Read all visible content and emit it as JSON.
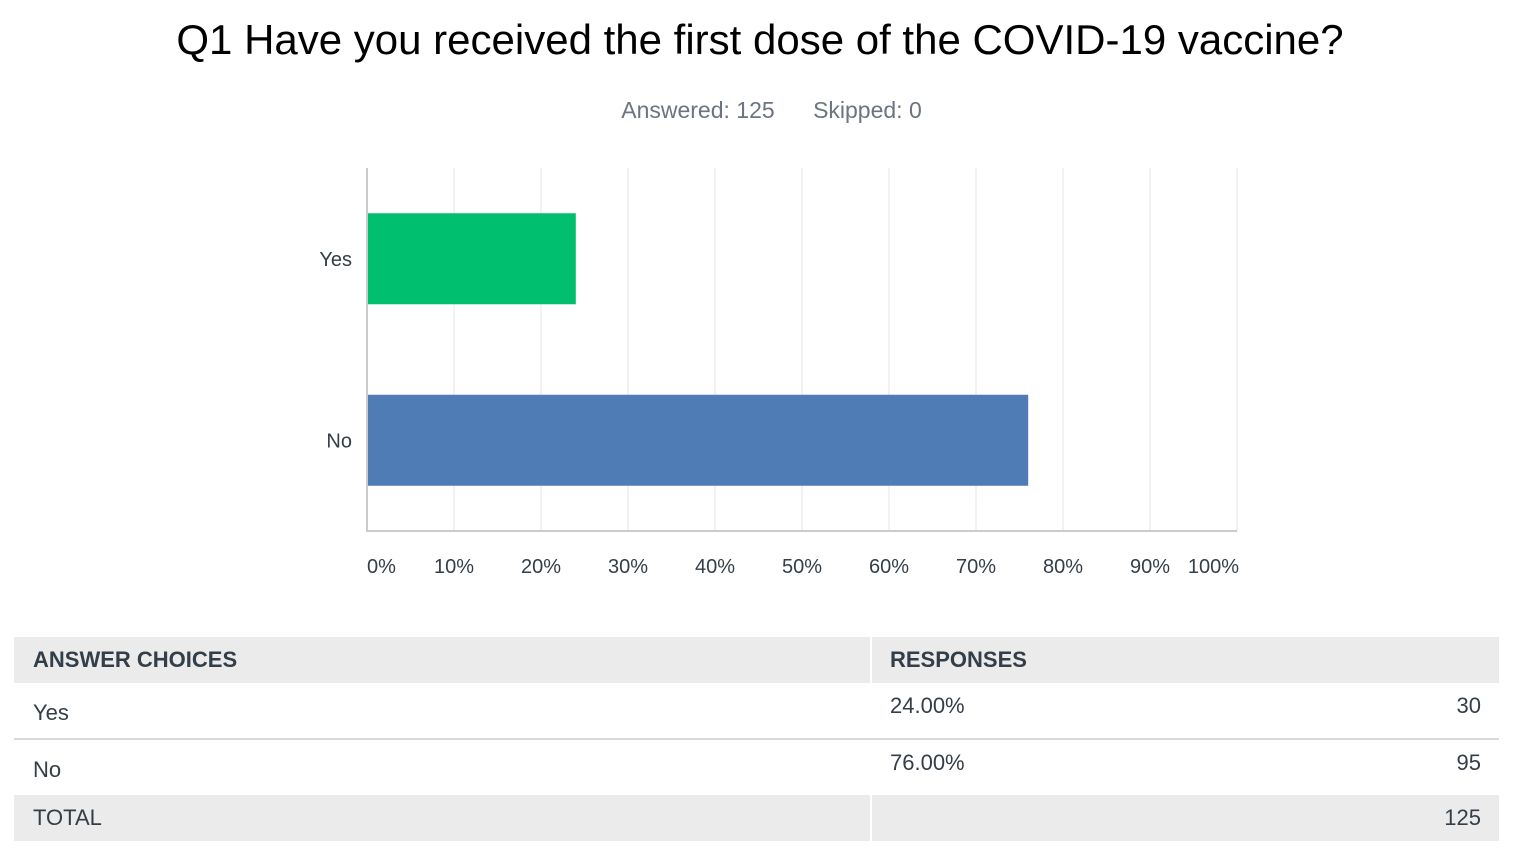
{
  "title": "Q1 Have you received the first dose of the COVID-19 vaccine?",
  "stats": {
    "answered": "Answered: 125",
    "skipped": "Skipped: 0"
  },
  "chart_data": {
    "type": "bar",
    "orientation": "horizontal",
    "categories": [
      "Yes",
      "No"
    ],
    "values": [
      24,
      76
    ],
    "colors": [
      "#00bf6f",
      "#507cb6"
    ],
    "xlim": [
      0,
      100
    ],
    "x_ticks": [
      "0%",
      "10%",
      "20%",
      "30%",
      "40%",
      "50%",
      "60%",
      "70%",
      "80%",
      "90%",
      "100%"
    ],
    "grid": true
  },
  "table": {
    "headers": [
      "ANSWER CHOICES",
      "RESPONSES"
    ],
    "rows": [
      {
        "choice": "Yes",
        "percent": "24.00%",
        "count": "30"
      },
      {
        "choice": "No",
        "percent": "76.00%",
        "count": "95"
      }
    ],
    "total_label": "TOTAL",
    "total_value": "125"
  }
}
